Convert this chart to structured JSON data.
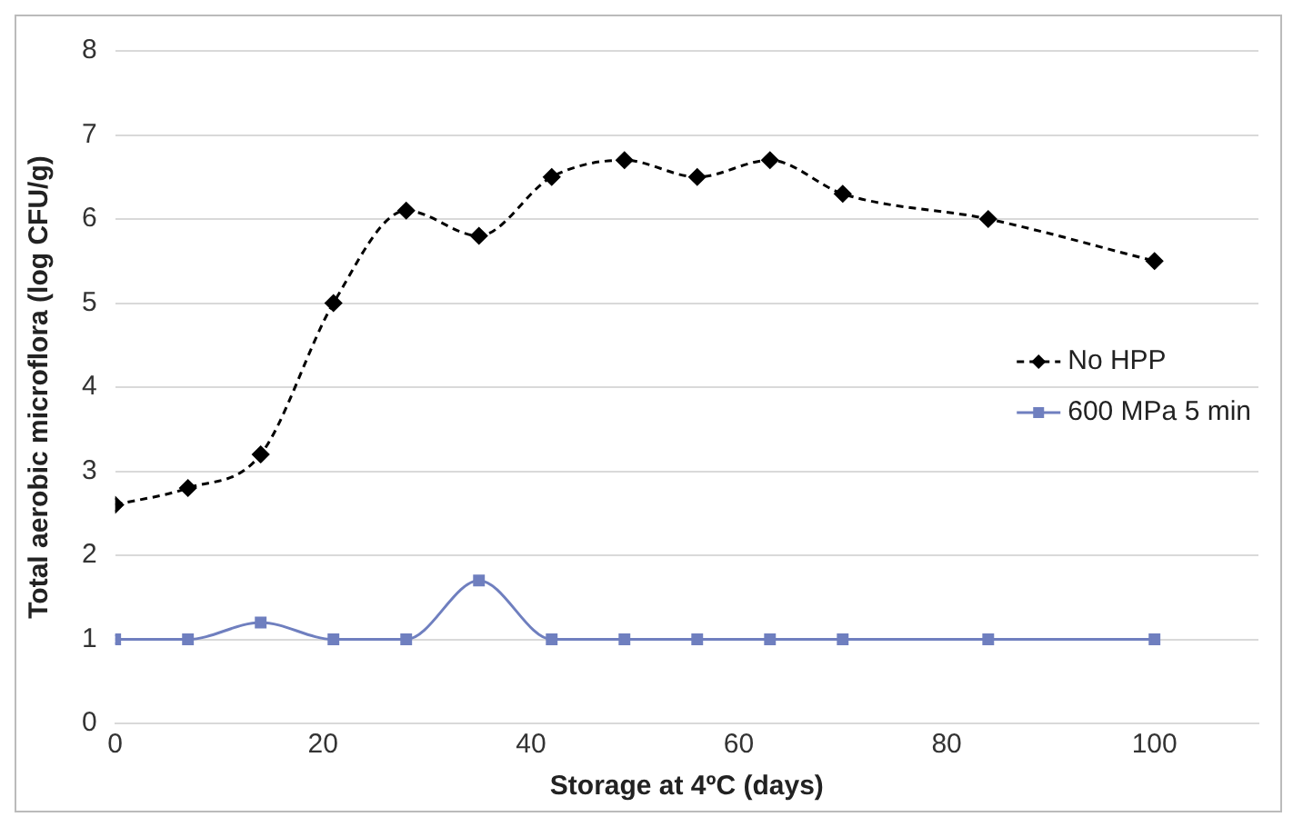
{
  "chart_data": {
    "type": "line",
    "xlabel": "Storage at 4ºC (days)",
    "ylabel": "Total aerobic microflora (log CFU/g)",
    "x": [
      0,
      7,
      14,
      21,
      28,
      35,
      42,
      49,
      56,
      63,
      70,
      84,
      100
    ],
    "series": [
      {
        "name": "No HPP",
        "color": "#000000",
        "marker": "diamond",
        "line_style": "dashed",
        "values": [
          2.6,
          2.8,
          3.2,
          5.0,
          6.1,
          5.8,
          6.5,
          6.7,
          6.5,
          6.7,
          6.3,
          6.0,
          5.5
        ]
      },
      {
        "name": "600 MPa 5 min",
        "color": "#6f7fbf",
        "marker": "square",
        "line_style": "solid",
        "values": [
          1,
          1,
          1.2,
          1,
          1,
          1.7,
          1,
          1,
          1,
          1,
          1,
          1,
          1
        ]
      }
    ],
    "xlim": [
      0,
      110
    ],
    "xticks": [
      0,
      20,
      40,
      60,
      80,
      100
    ],
    "ylim": [
      0,
      8
    ],
    "yticks": [
      0,
      1,
      2,
      3,
      4,
      5,
      6,
      7,
      8
    ],
    "grid": "y",
    "legend": "right"
  }
}
